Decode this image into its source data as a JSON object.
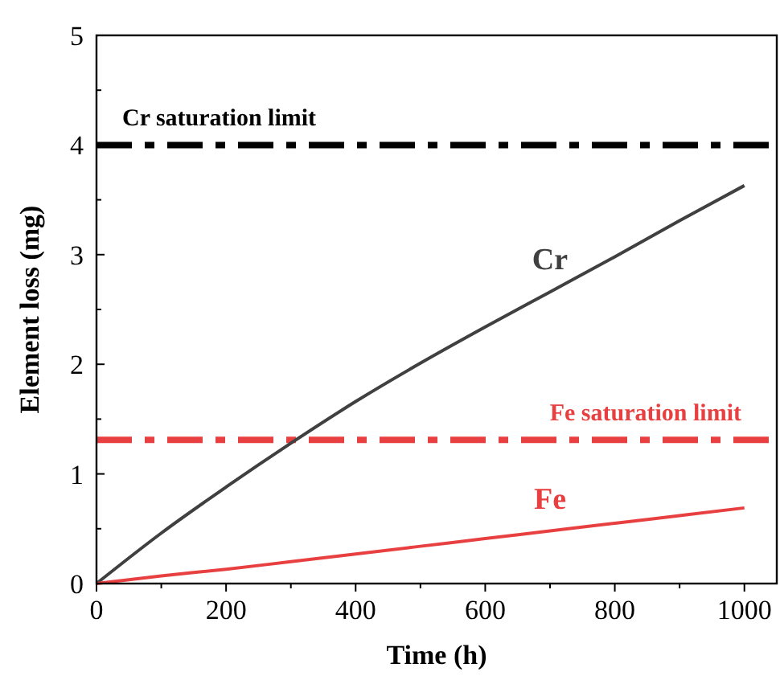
{
  "chart_data": {
    "type": "line",
    "xlabel": "Time (h)",
    "ylabel": "Element loss (mg)",
    "x": [
      0,
      100,
      200,
      300,
      400,
      500,
      600,
      700,
      800,
      900,
      1000
    ],
    "series": [
      {
        "name": "Cr",
        "color": "#404040",
        "values": [
          0,
          0.46,
          0.88,
          1.28,
          1.66,
          2.01,
          2.34,
          2.66,
          2.98,
          3.31,
          3.63
        ]
      },
      {
        "name": "Fe",
        "color": "#e84040",
        "values": [
          0,
          0.07,
          0.13,
          0.2,
          0.27,
          0.34,
          0.41,
          0.48,
          0.55,
          0.62,
          0.69
        ]
      }
    ],
    "xlim": [
      0,
      1050
    ],
    "xticks": [
      0,
      {
        "value": 100,
        "label": null
      },
      200,
      {
        "value": 300,
        "label": null
      },
      400,
      {
        "value": 500,
        "label": null
      },
      600,
      {
        "value": 700,
        "label": null
      },
      800,
      {
        "value": 900,
        "label": null
      },
      1000
    ],
    "ylim": [
      0,
      5
    ],
    "yticks": [
      0,
      {
        "value": 0.5,
        "label": null
      },
      1,
      {
        "value": 1.5,
        "label": null
      },
      2,
      {
        "value": 2.5,
        "label": null
      },
      3,
      {
        "value": 3.5,
        "label": null
      },
      4,
      {
        "value": 4.5,
        "label": null
      },
      5
    ],
    "ref_lines": [
      {
        "axis": "y",
        "value": 4,
        "label": "Cr saturation limit",
        "color": "#000000",
        "line_style": "dashdot"
      },
      {
        "axis": "y",
        "value": 1.31,
        "label": "Fe saturation limit",
        "color": "#e84040",
        "line_style": "dashdot"
      }
    ],
    "grid": false,
    "marker": "none",
    "line_style": "solid"
  }
}
